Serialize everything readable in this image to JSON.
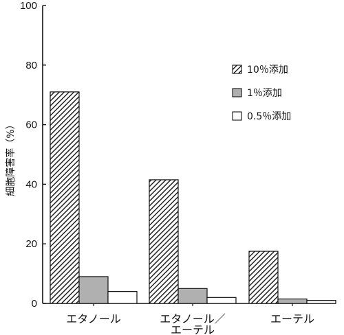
{
  "chart_data": {
    "type": "bar",
    "title": "",
    "xlabel": "",
    "ylabel": "細胞障害率（%）",
    "ylim": [
      0,
      100
    ],
    "yticks": [
      0,
      20,
      40,
      60,
      80,
      100
    ],
    "grid": false,
    "legend_position": "top-right",
    "categories": [
      [
        "エタノール"
      ],
      [
        "エタノール／",
        "エーテル"
      ],
      [
        "エーテル"
      ]
    ],
    "series": [
      {
        "name": "10％添加",
        "values": [
          71,
          41.5,
          17.5
        ],
        "fill": "hatch"
      },
      {
        "name": "1％添加",
        "values": [
          9,
          5,
          1.5
        ],
        "fill": "#b0b0b0"
      },
      {
        "name": "0.5％添加",
        "values": [
          4,
          2,
          1
        ],
        "fill": "#ffffff"
      }
    ]
  }
}
